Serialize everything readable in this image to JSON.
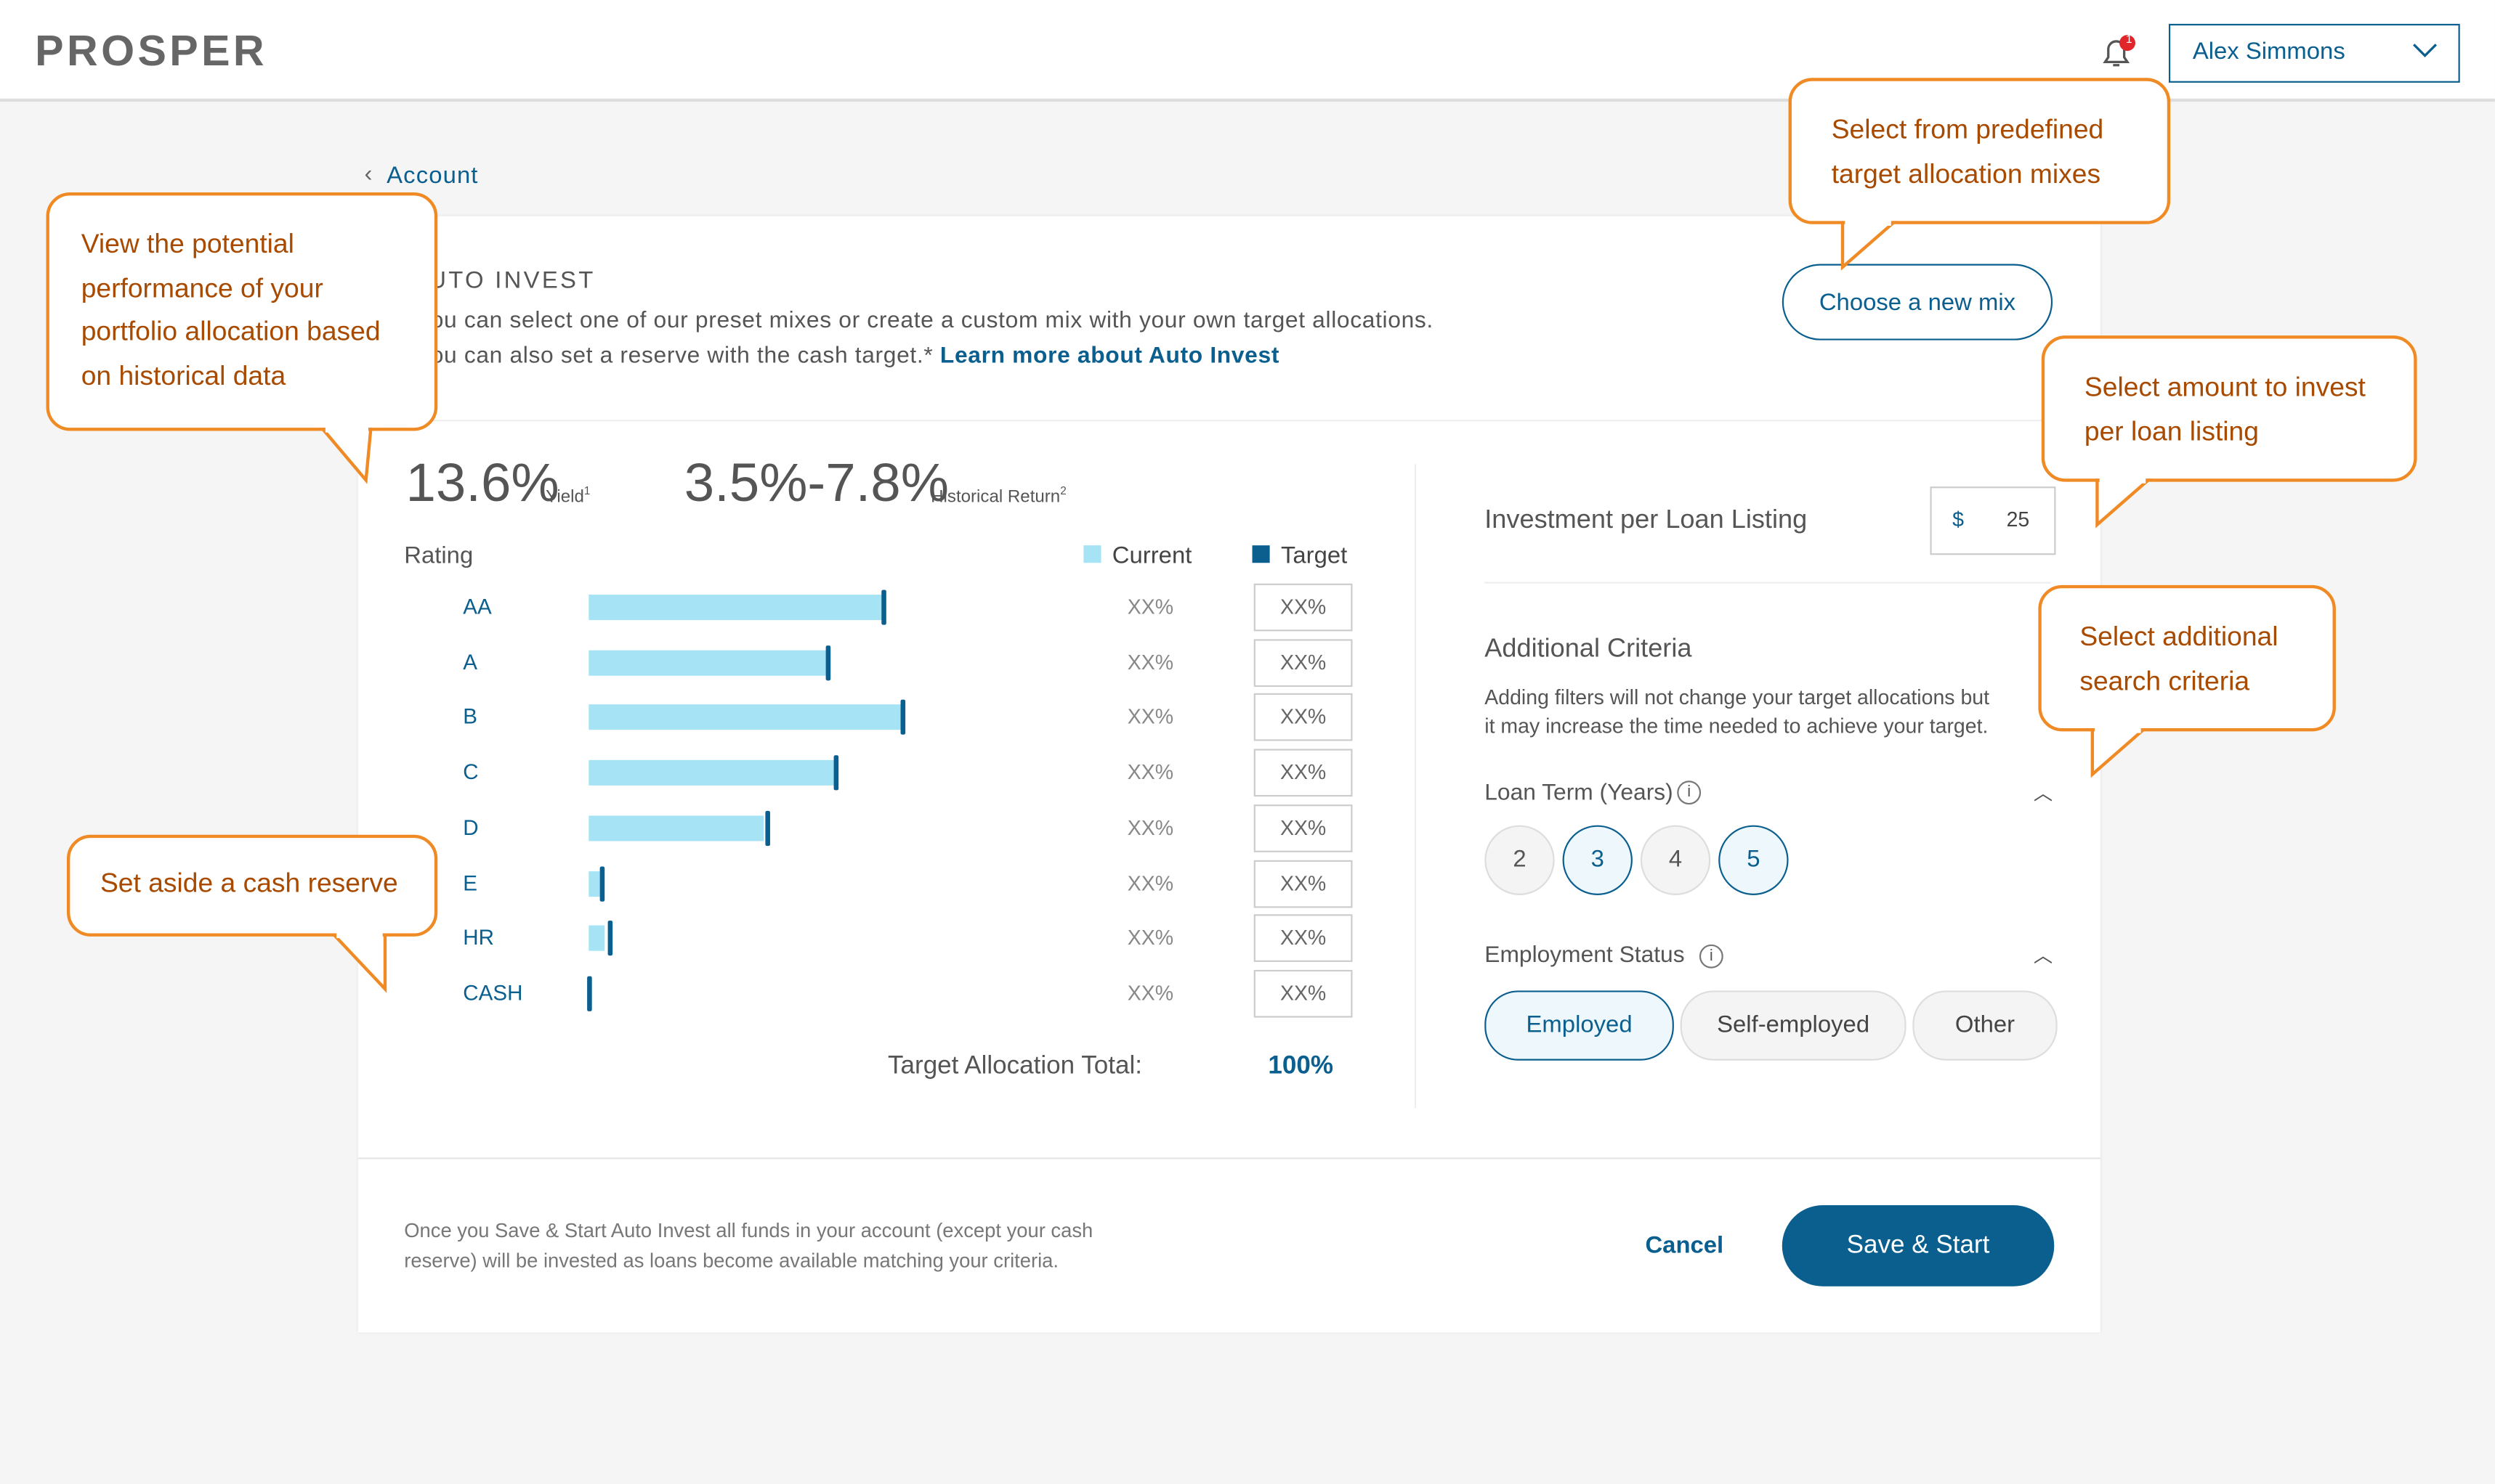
{
  "header": {
    "logo": "PROSPER",
    "notification_count": 1,
    "user_name": "Alex Simmons"
  },
  "breadcrumb": "Account",
  "auto_invest": {
    "title": "AUTO INVEST",
    "description_line_1": "You can select one of our preset mixes or create a custom mix with your own target allocations.",
    "description_line_2": "You can also set a reserve with the cash target.*",
    "learn_more_link": "Learn more about Auto Invest",
    "choose_mix_button": "Choose a new mix"
  },
  "performance": {
    "yield_value": "13.6%",
    "yield_label": "Yield",
    "yield_note": "1",
    "return_value": "3.5%-7.8%",
    "return_label": "Historical Return",
    "return_note": "2"
  },
  "allocation": {
    "rating_header": "Rating",
    "legend_current": "Current",
    "legend_target": "Target",
    "rows": [
      {
        "rating": "AA",
        "current": 185,
        "target": 185,
        "current_text": "XX%",
        "target_text": "XX%"
      },
      {
        "rating": "A",
        "current": 150,
        "target": 150,
        "current_text": "XX%",
        "target_text": "XX%"
      },
      {
        "rating": "B",
        "current": 197,
        "target": 197,
        "current_text": "XX%",
        "target_text": "XX%"
      },
      {
        "rating": "C",
        "current": 155,
        "target": 155,
        "current_text": "XX%",
        "target_text": "XX%"
      },
      {
        "rating": "D",
        "current": 110,
        "target": 112,
        "current_text": "XX%",
        "target_text": "XX%"
      },
      {
        "rating": "E",
        "current": 7,
        "target": 8,
        "current_text": "XX%",
        "target_text": "XX%"
      },
      {
        "rating": "HR",
        "current": 10,
        "target": 13,
        "current_text": "XX%",
        "target_text": "XX%"
      },
      {
        "rating": "CASH",
        "current": 0,
        "target": 0,
        "current_text": "XX%",
        "target_text": "XX%"
      }
    ],
    "total_label": "Target Allocation Total:",
    "total_value": "100%"
  },
  "investment": {
    "label": "Investment per Loan Listing",
    "currency": "$",
    "amount": "25"
  },
  "criteria": {
    "title": "Additional Criteria",
    "description_line_1": "Adding filters will not change your target allocations but",
    "description_line_2": "it may increase the time needed to achieve your target.",
    "loan_term_label": "Loan Term (Years)",
    "loan_terms": [
      "2",
      "3",
      "4",
      "5"
    ],
    "employment_label": "Employment Status",
    "employment_options": [
      "Employed",
      "Self-employed",
      "Other"
    ]
  },
  "footer": {
    "note_line_1": "Once you Save & Start Auto Invest all funds in your account (except your cash",
    "note_line_2": "reserve) will be invested as loans become available matching your criteria.",
    "cancel_button": "Cancel",
    "save_button": "Save & Start"
  },
  "callouts": {
    "performance": [
      "View the potential",
      "performance of your",
      "portfolio allocation based",
      "on historical data"
    ],
    "mix": [
      "Select from predefined",
      "target allocation mixes"
    ],
    "amount": [
      "Select amount to invest",
      "per loan listing"
    ],
    "criteria": [
      "Select additional",
      "search criteria"
    ],
    "cash": [
      "Set aside a cash reserve"
    ]
  }
}
